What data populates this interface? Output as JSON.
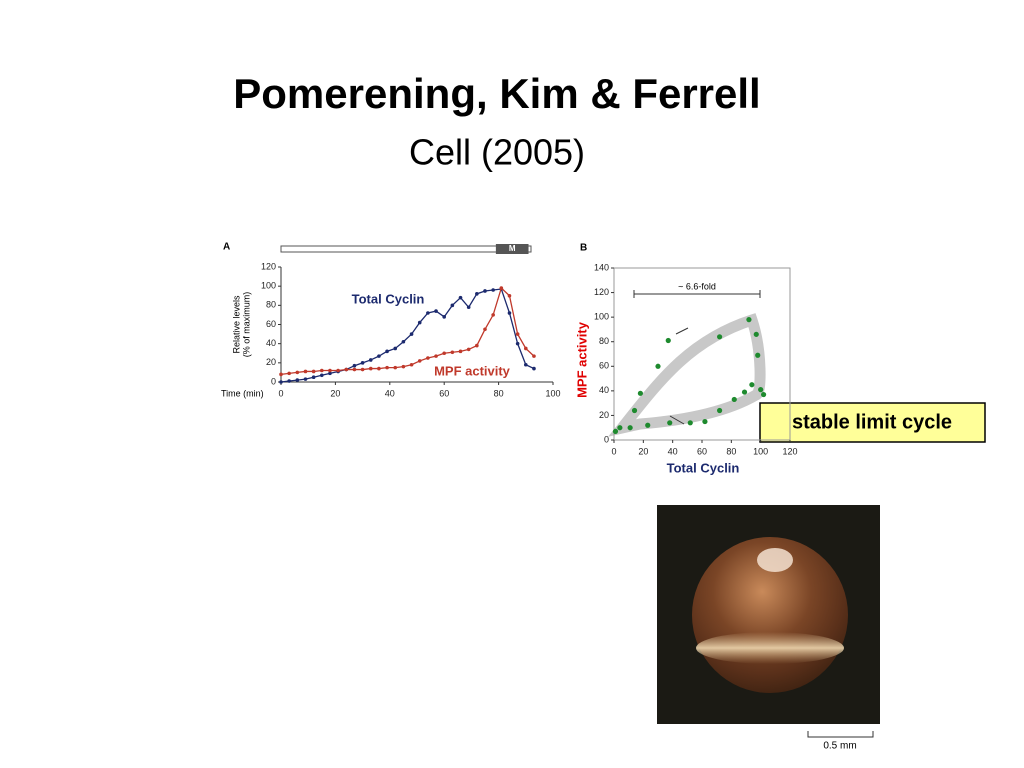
{
  "slide": {
    "title": "Pomerening, Kim & Ferrell",
    "subtitle": "Cell (2005)"
  },
  "chart_data": [
    {
      "type": "line",
      "panel": "A",
      "xlabel": "Time (min)",
      "ylabel": [
        "Relative levels",
        "(% of maximum)"
      ],
      "x": [
        0,
        3,
        6,
        9,
        12,
        15,
        18,
        21,
        24,
        27,
        30,
        33,
        36,
        39,
        42,
        45,
        48,
        51,
        54,
        57,
        60,
        63,
        66,
        69,
        72,
        75,
        78,
        81,
        84,
        87,
        90,
        93
      ],
      "series": [
        {
          "name": "Total Cyclin",
          "color": "#1c2a6e",
          "values": [
            0,
            1,
            2,
            3,
            5,
            7,
            9,
            11,
            13,
            17,
            20,
            23,
            27,
            32,
            35,
            42,
            50,
            62,
            72,
            74,
            68,
            80,
            88,
            78,
            92,
            95,
            96,
            97,
            72,
            40,
            18,
            14
          ]
        },
        {
          "name": "MPF activity",
          "color": "#c0392b",
          "values": [
            8,
            9,
            10,
            11,
            11,
            12,
            12,
            12,
            13,
            13,
            13,
            14,
            14,
            15,
            15,
            16,
            18,
            22,
            25,
            27,
            30,
            31,
            32,
            34,
            38,
            55,
            70,
            98,
            90,
            50,
            35,
            27
          ]
        }
      ],
      "xlim": [
        0,
        100
      ],
      "ylim": [
        0,
        120
      ],
      "xticks": [
        0,
        20,
        40,
        60,
        80,
        100
      ],
      "yticks": [
        0,
        20,
        40,
        60,
        80,
        100,
        120
      ],
      "band": {
        "label": "M",
        "xrange": [
          79,
          91
        ]
      }
    },
    {
      "type": "scatter",
      "panel": "B",
      "xlabel": "Total Cyclin",
      "ylabel": "MPF activity",
      "annotation": "~ 6.6-fold",
      "x": [
        1,
        4,
        11,
        23,
        38,
        52,
        62,
        72,
        82,
        89,
        94,
        100,
        102,
        98,
        97,
        92,
        72,
        37,
        30,
        18,
        14
      ],
      "values": [
        7,
        10,
        10,
        12,
        14,
        14,
        15,
        24,
        33,
        39,
        45,
        41,
        37,
        69,
        86,
        98,
        84,
        81,
        60,
        38,
        24
      ],
      "color": "#1e8a2e",
      "xlim": [
        0,
        120
      ],
      "ylim": [
        0,
        140
      ],
      "xticks": [
        0,
        20,
        40,
        60,
        80,
        100,
        120
      ],
      "yticks": [
        0,
        20,
        40,
        60,
        80,
        100,
        120,
        140
      ]
    }
  ],
  "callout": "stable limit cycle",
  "image": {
    "scale_label": "0.5 mm"
  }
}
